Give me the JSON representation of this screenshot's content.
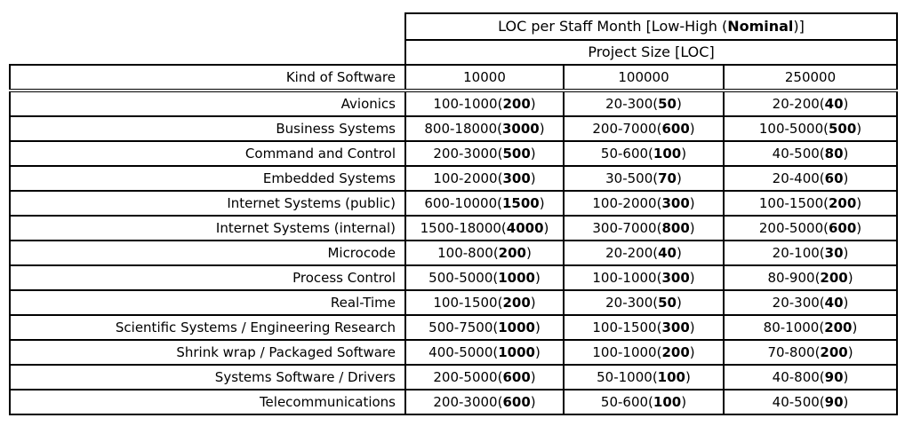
{
  "colors": {
    "border": "#000000",
    "background": "#ffffff",
    "text": "#000000"
  },
  "table": {
    "title": {
      "pre": "LOC per Staff Month [Low-High (",
      "b": "Nominal",
      "post": ")]"
    },
    "subtitle": "Project Size [LOC]",
    "kind_header": "Kind of Software",
    "size_headers": [
      "10000",
      "100000",
      "250000"
    ],
    "rows": [
      {
        "kind": "Avionics",
        "cells": [
          {
            "pre": "100-1000(",
            "b": "200",
            "post": ")"
          },
          {
            "pre": "20-300(",
            "b": "50",
            "post": ")"
          },
          {
            "pre": "20-200(",
            "b": "40",
            "post": ")"
          }
        ]
      },
      {
        "kind": "Business Systems",
        "cells": [
          {
            "pre": "800-18000(",
            "b": "3000",
            "post": ")"
          },
          {
            "pre": "200-7000(",
            "b": "600",
            "post": ")"
          },
          {
            "pre": "100-5000(",
            "b": "500",
            "post": ")"
          }
        ]
      },
      {
        "kind": "Command and Control",
        "cells": [
          {
            "pre": "200-3000(",
            "b": "500",
            "post": ")"
          },
          {
            "pre": "50-600(",
            "b": "100",
            "post": ")"
          },
          {
            "pre": "40-500(",
            "b": "80",
            "post": ")"
          }
        ]
      },
      {
        "kind": "Embedded Systems",
        "cells": [
          {
            "pre": "100-2000(",
            "b": "300",
            "post": ")"
          },
          {
            "pre": "30-500(",
            "b": "70",
            "post": ")"
          },
          {
            "pre": "20-400(",
            "b": "60",
            "post": ")"
          }
        ]
      },
      {
        "kind": "Internet Systems (public)",
        "cells": [
          {
            "pre": "600-10000(",
            "b": "1500",
            "post": ")"
          },
          {
            "pre": "100-2000(",
            "b": "300",
            "post": ")"
          },
          {
            "pre": "100-1500(",
            "b": "200",
            "post": ")"
          }
        ]
      },
      {
        "kind": "Internet Systems (internal)",
        "cells": [
          {
            "pre": "1500-18000(",
            "b": "4000",
            "post": ")"
          },
          {
            "pre": "300-7000(",
            "b": "800",
            "post": ")"
          },
          {
            "pre": "200-5000(",
            "b": "600",
            "post": ")"
          }
        ]
      },
      {
        "kind": "Microcode",
        "cells": [
          {
            "pre": "100-800(",
            "b": "200",
            "post": ")"
          },
          {
            "pre": "20-200(",
            "b": "40",
            "post": ")"
          },
          {
            "pre": "20-100(",
            "b": "30",
            "post": ")"
          }
        ]
      },
      {
        "kind": "Process Control",
        "cells": [
          {
            "pre": "500-5000(",
            "b": "1000",
            "post": ")"
          },
          {
            "pre": "100-1000(",
            "b": "300",
            "post": ")"
          },
          {
            "pre": "80-900(",
            "b": "200",
            "post": ")"
          }
        ]
      },
      {
        "kind": "Real-Time",
        "cells": [
          {
            "pre": "100-1500(",
            "b": "200",
            "post": ")"
          },
          {
            "pre": "20-300(",
            "b": "50",
            "post": ")"
          },
          {
            "pre": "20-300(",
            "b": "40",
            "post": ")"
          }
        ]
      },
      {
        "kind": "Scientific Systems / Engineering Research",
        "cells": [
          {
            "pre": "500-7500(",
            "b": "1000",
            "post": ")"
          },
          {
            "pre": "100-1500(",
            "b": "300",
            "post": ")"
          },
          {
            "pre": "80-1000(",
            "b": "200",
            "post": ")"
          }
        ]
      },
      {
        "kind": "Shrink wrap / Packaged Software",
        "cells": [
          {
            "pre": "400-5000(",
            "b": "1000",
            "post": ")"
          },
          {
            "pre": "100-1000(",
            "b": "200",
            "post": ")"
          },
          {
            "pre": "70-800(",
            "b": "200",
            "post": ")"
          }
        ]
      },
      {
        "kind": "Systems Software / Drivers",
        "cells": [
          {
            "pre": "200-5000(",
            "b": "600",
            "post": ")"
          },
          {
            "pre": "50-1000(",
            "b": "100",
            "post": ")"
          },
          {
            "pre": "40-800(",
            "b": "90",
            "post": ")"
          }
        ]
      },
      {
        "kind": "Telecommunications",
        "cells": [
          {
            "pre": "200-3000(",
            "b": "600",
            "post": ")"
          },
          {
            "pre": "50-600(",
            "b": "100",
            "post": ")"
          },
          {
            "pre": "40-500(",
            "b": "90",
            "post": ")"
          }
        ]
      }
    ]
  }
}
